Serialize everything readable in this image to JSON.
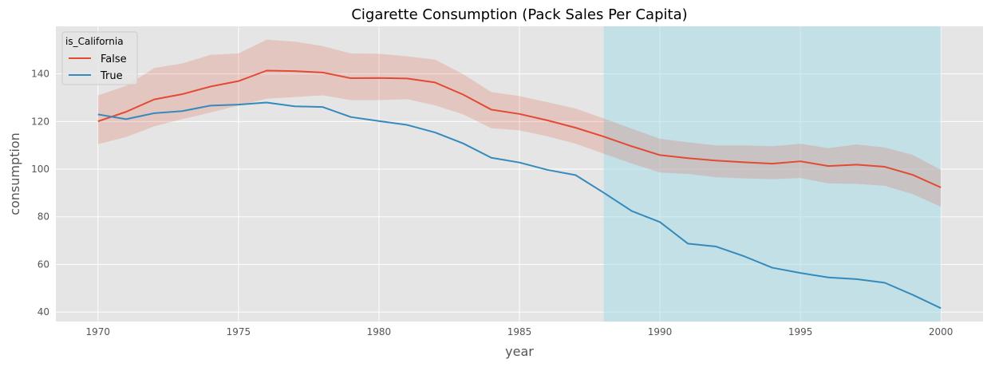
{
  "chart_data": {
    "type": "line",
    "title": "Cigarette Consumption (Pack Sales Per Capita)",
    "xlabel": "year",
    "ylabel": "consumption",
    "xlim": [
      1968.5,
      2001.5
    ],
    "ylim": [
      36,
      160
    ],
    "xticks": [
      1970,
      1975,
      1980,
      1985,
      1990,
      1995,
      2000
    ],
    "yticks": [
      40,
      60,
      80,
      100,
      120,
      140
    ],
    "grid": true,
    "legend": {
      "title": "is_California",
      "placement": "top-left"
    },
    "x": [
      1970,
      1971,
      1972,
      1973,
      1974,
      1975,
      1976,
      1977,
      1978,
      1979,
      1980,
      1981,
      1982,
      1983,
      1984,
      1985,
      1986,
      1987,
      1988,
      1989,
      1990,
      1991,
      1992,
      1993,
      1994,
      1995,
      1996,
      1997,
      1998,
      1999,
      2000
    ],
    "series": [
      {
        "name": "False",
        "color": "#e24a33",
        "values": [
          120.1,
          124.1,
          129.3,
          131.5,
          134.7,
          137.0,
          141.4,
          141.2,
          140.6,
          138.2,
          138.3,
          138.1,
          136.4,
          131.3,
          125.0,
          123.2,
          120.5,
          117.4,
          113.7,
          109.6,
          105.9,
          104.6,
          103.6,
          102.9,
          102.3,
          103.3,
          101.3,
          101.9,
          101.0,
          97.6,
          92.3
        ],
        "ci_lower": [
          110.5,
          113.5,
          118.0,
          121.0,
          123.8,
          126.7,
          129.6,
          130.3,
          131.0,
          129.0,
          129.0,
          129.4,
          126.8,
          123.0,
          117.2,
          116.3,
          113.8,
          110.7,
          106.5,
          102.4,
          98.6,
          98.0,
          96.6,
          96.1,
          95.8,
          96.3,
          94.0,
          93.8,
          93.0,
          89.5,
          84.2
        ],
        "ci_upper": [
          131.0,
          135.0,
          142.5,
          144.4,
          148.0,
          148.6,
          154.4,
          153.6,
          151.7,
          148.6,
          148.5,
          147.4,
          146.0,
          139.9,
          132.4,
          130.7,
          128.1,
          125.5,
          121.3,
          117.0,
          112.8,
          111.3,
          110.0,
          110.0,
          109.6,
          110.7,
          108.8,
          110.4,
          109.1,
          106.0,
          99.7
        ]
      },
      {
        "name": "True",
        "color": "#348abd",
        "values": [
          123.0,
          121.0,
          123.5,
          124.4,
          126.7,
          127.1,
          128.0,
          126.4,
          126.1,
          121.9,
          120.2,
          118.6,
          115.4,
          110.8,
          104.8,
          102.8,
          99.7,
          97.5,
          90.1,
          82.4,
          77.8,
          68.7,
          67.5,
          63.4,
          58.6,
          56.4,
          54.5,
          53.8,
          52.3,
          47.2,
          41.6
        ]
      }
    ],
    "shaded_region": {
      "x_start": 1988,
      "x_end": 2000,
      "color": "#a8dde8"
    },
    "colors": {
      "plot_background": "#e5e5e5",
      "grid": "#ffffff",
      "figure_background": "#ffffff"
    }
  }
}
